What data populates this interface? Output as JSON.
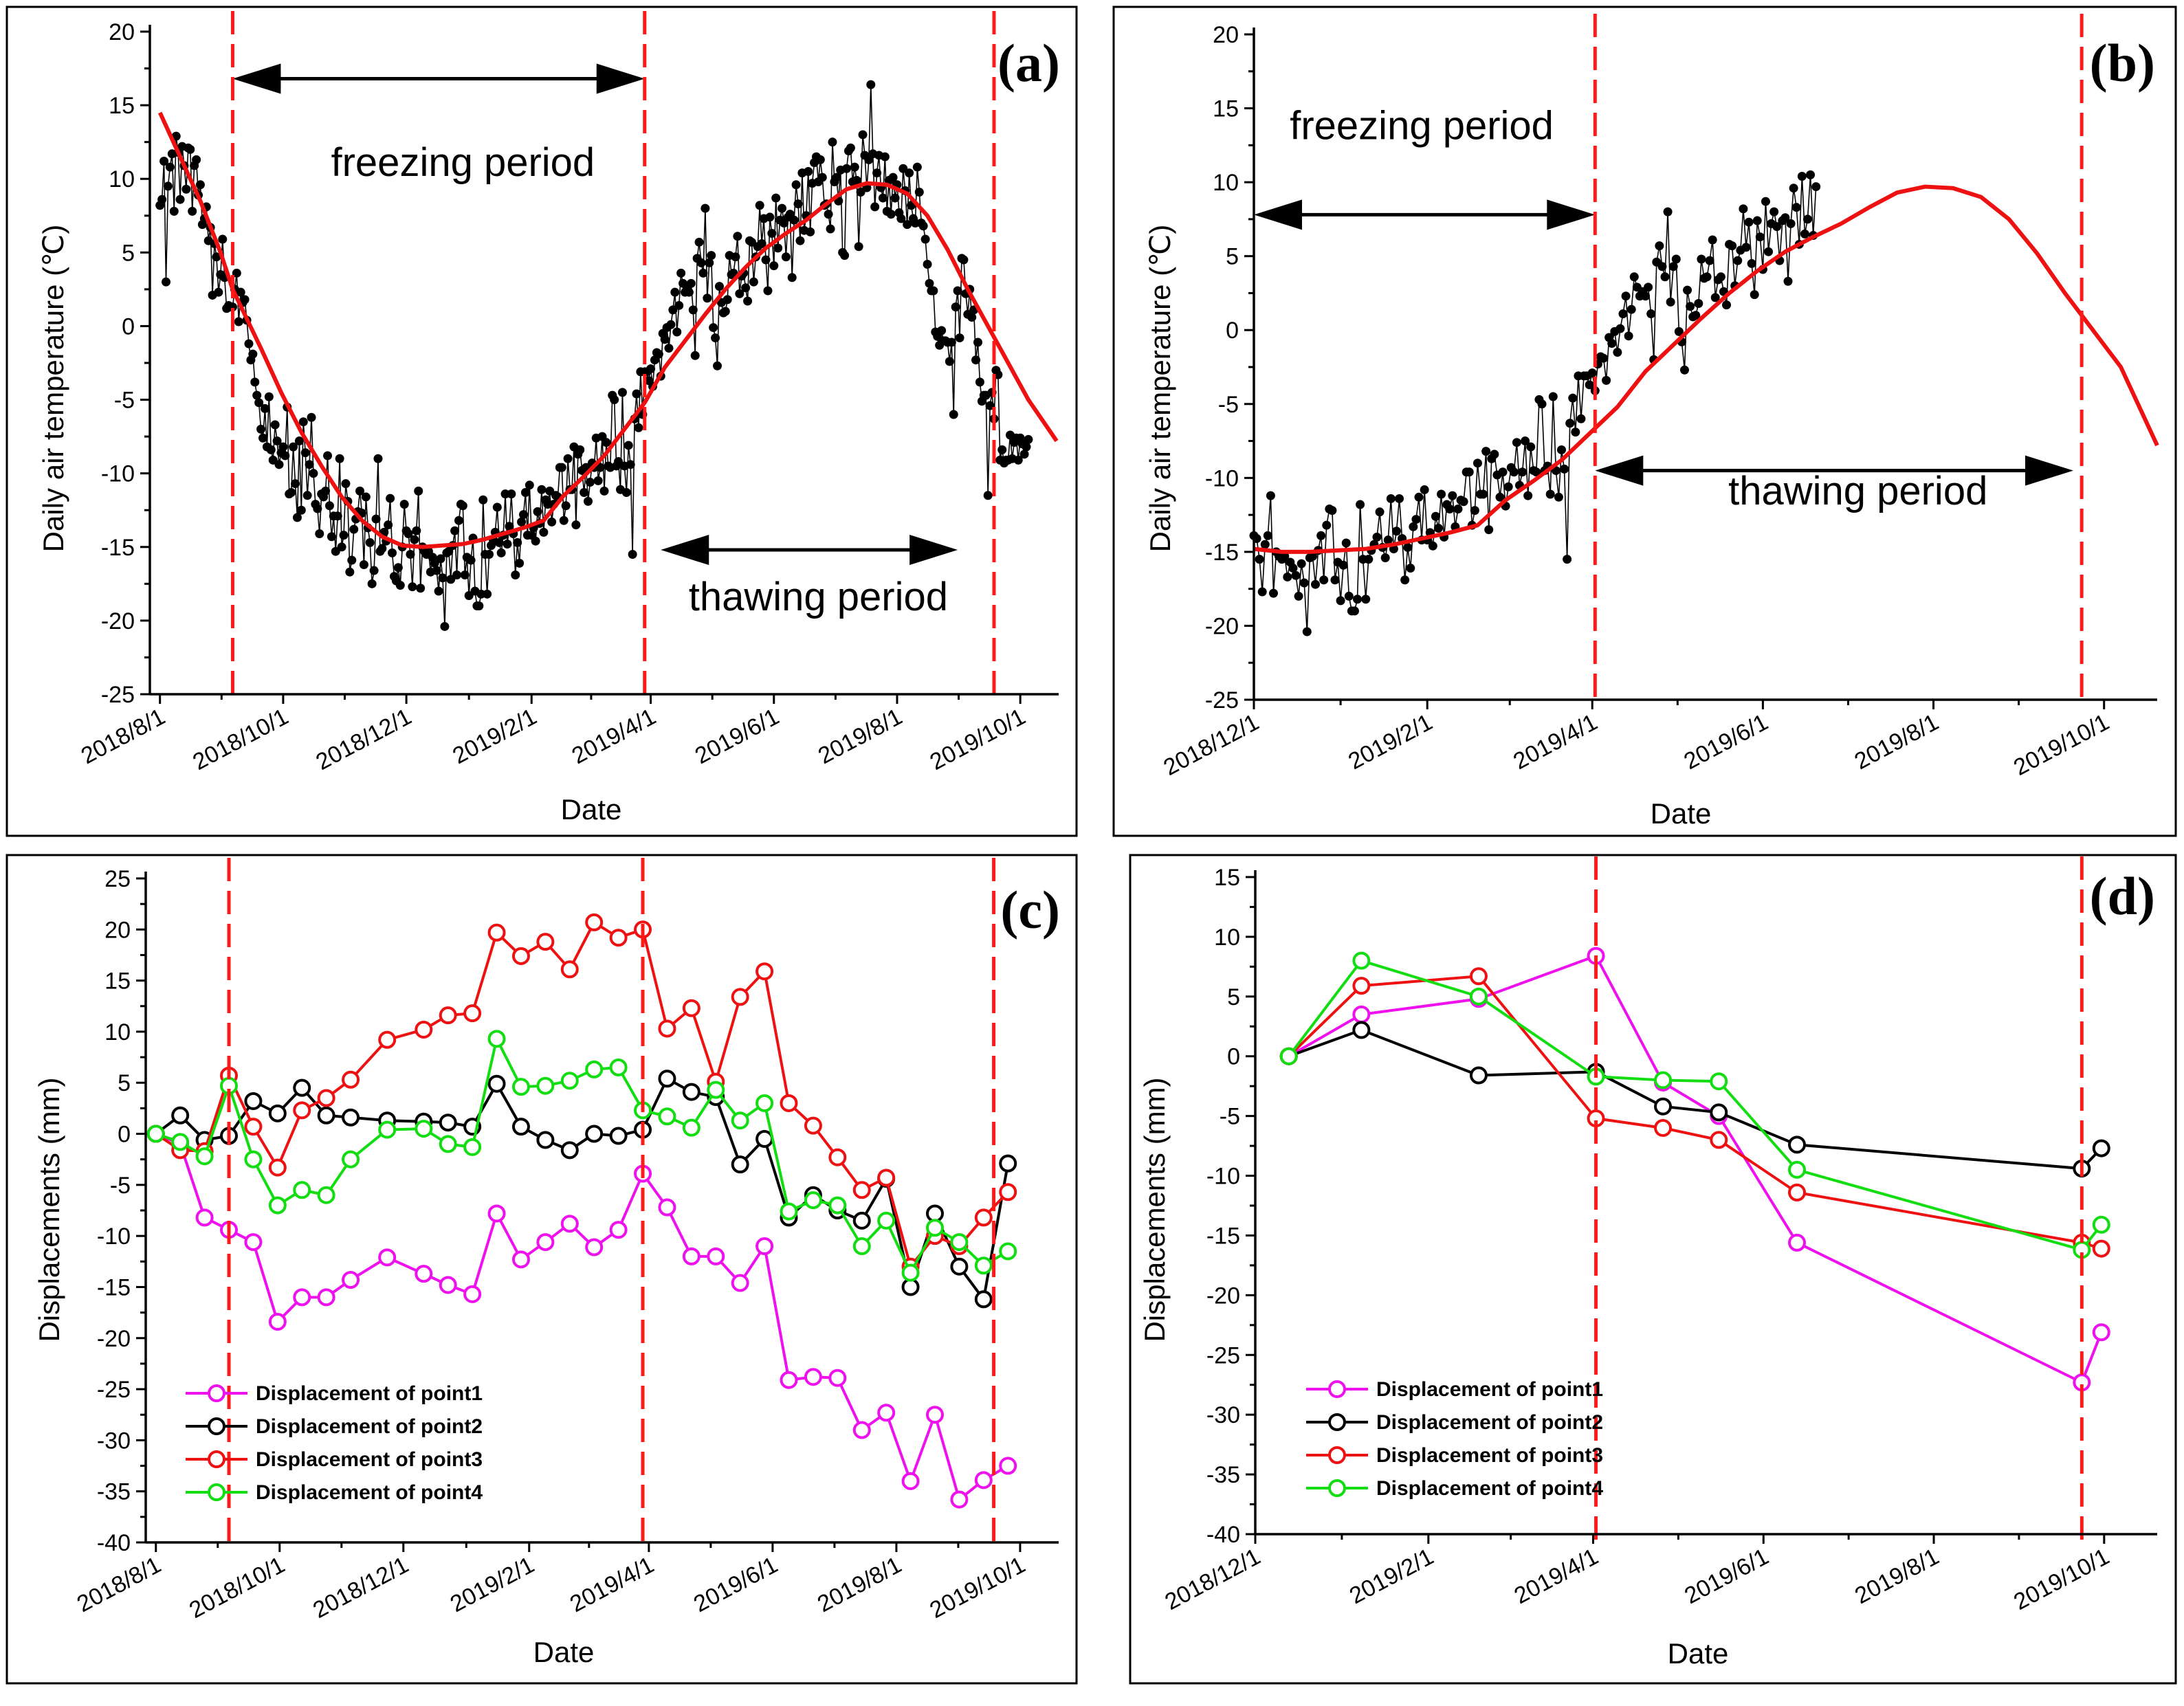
{
  "figure": {
    "background": "#ffffff",
    "colors": {
      "point1": "#ee11ee",
      "point2": "#000000",
      "point3": "#ee1111",
      "point4": "#11dd11",
      "trend": "#ee1111",
      "temperature": "#000000",
      "period_line": "#ff1a1a"
    }
  },
  "chart_data": [
    {
      "id": "a",
      "type": "scatter",
      "panel_label": "(a)",
      "title": "",
      "xlabel": "Date",
      "ylabel": "Daily air temperature (℃)",
      "xlim": [
        -5,
        445
      ],
      "ylim": [
        -25,
        20
      ],
      "yticks": [
        -25,
        -20,
        -15,
        -10,
        -5,
        0,
        5,
        10,
        15,
        20
      ],
      "xticks": [
        {
          "value": 0,
          "label": "2018/8/1"
        },
        {
          "value": 61,
          "label": "2018/10/1"
        },
        {
          "value": 122,
          "label": "2018/12/1"
        },
        {
          "value": 184,
          "label": "2019/2/1"
        },
        {
          "value": 243,
          "label": "2019/4/1"
        },
        {
          "value": 304,
          "label": "2019/6/1"
        },
        {
          "value": 365,
          "label": "2019/8/1"
        },
        {
          "value": 426,
          "label": "2019/10/1"
        }
      ],
      "period_lines": [
        36,
        240,
        413
      ],
      "annotations": [
        {
          "text": "freezing period",
          "x": 150,
          "y": 10.2
        },
        {
          "text": "thawing period",
          "x": 326,
          "y": -19.3
        }
      ],
      "arrows": [
        {
          "from": 36,
          "to": 240,
          "y": 16.8
        },
        {
          "from": 248,
          "to": 395,
          "y": -15.2
        }
      ],
      "series": [
        {
          "name": "Daily air temperature",
          "series_key": "temperature_daily"
        },
        {
          "name": "Trend",
          "x": [
            0,
            10,
            20,
            30,
            36,
            50,
            60,
            70,
            80,
            90,
            100,
            110,
            120,
            130,
            140,
            150,
            160,
            170,
            180,
            190,
            200,
            210,
            220,
            230,
            240,
            250,
            260,
            270,
            280,
            290,
            300,
            310,
            320,
            330,
            340,
            350,
            360,
            370,
            380,
            390,
            400,
            410,
            420,
            430,
            444
          ],
          "values": [
            14.5,
            11.5,
            8.5,
            5.0,
            2.5,
            -1.5,
            -4.5,
            -7.2,
            -9.5,
            -11.6,
            -13.2,
            -14.3,
            -14.9,
            -15.0,
            -14.9,
            -14.8,
            -14.5,
            -14.1,
            -13.7,
            -13.2,
            -11.5,
            -10.2,
            -8.8,
            -7.0,
            -5.2,
            -2.8,
            -1.0,
            0.8,
            2.5,
            4.0,
            5.3,
            6.3,
            7.2,
            8.3,
            9.3,
            9.7,
            9.6,
            9.0,
            7.5,
            5.2,
            2.5,
            0.0,
            -2.5,
            -5.0,
            -7.8
          ]
        }
      ]
    },
    {
      "id": "b",
      "type": "scatter",
      "panel_label": "(b)",
      "title": "",
      "xlabel": "Date",
      "ylabel": "Daily air temperature (℃)",
      "xlim": [
        0,
        323
      ],
      "ylim": [
        -25,
        20
      ],
      "yticks": [
        -25,
        -20,
        -15,
        -10,
        -5,
        0,
        5,
        10,
        15,
        20
      ],
      "xticks": [
        {
          "value": 0,
          "label": "2018/12/1"
        },
        {
          "value": 62,
          "label": "2019/2/1"
        },
        {
          "value": 121,
          "label": "2019/4/1"
        },
        {
          "value": 182,
          "label": "2019/6/1"
        },
        {
          "value": 243,
          "label": "2019/8/1"
        },
        {
          "value": 304,
          "label": "2019/10/1"
        }
      ],
      "period_lines": [
        122,
        296
      ],
      "annotations": [
        {
          "text": "freezing period",
          "x": 60,
          "y": 12.9
        },
        {
          "text": "thawing period",
          "x": 216,
          "y": -11.8
        }
      ],
      "arrows": [
        {
          "from": 0,
          "to": 122,
          "y": 7.8
        },
        {
          "from": 122,
          "to": 293,
          "y": -9.5
        }
      ],
      "series": [
        {
          "name": "Daily air temperature",
          "series_key": "temperature_daily"
        },
        {
          "name": "Trend",
          "x": [
            0,
            10,
            20,
            30,
            40,
            50,
            60,
            70,
            80,
            90,
            100,
            110,
            120,
            130,
            140,
            150,
            160,
            170,
            180,
            190,
            200,
            210,
            220,
            230,
            240,
            250,
            260,
            270,
            280,
            290,
            300,
            310,
            323
          ],
          "values": [
            -14.8,
            -15.0,
            -15.0,
            -14.9,
            -14.8,
            -14.5,
            -14.1,
            -13.7,
            -13.2,
            -11.5,
            -10.2,
            -8.8,
            -7.0,
            -5.2,
            -2.8,
            -1.0,
            0.8,
            2.5,
            4.0,
            5.3,
            6.3,
            7.2,
            8.3,
            9.3,
            9.7,
            9.6,
            9.0,
            7.5,
            5.2,
            2.5,
            0.0,
            -2.5,
            -7.8
          ]
        }
      ]
    },
    {
      "id": "c",
      "type": "line",
      "panel_label": "(c)",
      "title": "",
      "xlabel": "Date",
      "ylabel": "Displacements (mm)",
      "xlim": [
        -5,
        445
      ],
      "ylim": [
        -40,
        25
      ],
      "yticks": [
        -40,
        -35,
        -30,
        -25,
        -20,
        -15,
        -10,
        -5,
        0,
        5,
        10,
        15,
        20,
        25
      ],
      "xticks": [
        {
          "value": 0,
          "label": "2018/8/1"
        },
        {
          "value": 61,
          "label": "2018/10/1"
        },
        {
          "value": 122,
          "label": "2018/12/1"
        },
        {
          "value": 184,
          "label": "2019/2/1"
        },
        {
          "value": 243,
          "label": "2019/4/1"
        },
        {
          "value": 304,
          "label": "2019/6/1"
        },
        {
          "value": 365,
          "label": "2019/8/1"
        },
        {
          "value": 426,
          "label": "2019/10/1"
        }
      ],
      "period_lines": [
        36,
        240,
        413
      ],
      "legend": [
        "Displacement of point1",
        "Displacement of point2",
        "Displacement of point3",
        "Displacement of point4"
      ],
      "legend_position": "bottom-left",
      "x": [
        0,
        12,
        24,
        36,
        48,
        60,
        72,
        84,
        96,
        114,
        132,
        144,
        156,
        168,
        180,
        192,
        204,
        216,
        228,
        240,
        252,
        264,
        276,
        288,
        300,
        312,
        324,
        336,
        348,
        360,
        372,
        384,
        396,
        408,
        420,
        432,
        444
      ],
      "series": [
        {
          "name": "Displacement of point1",
          "color_key": "point1",
          "values": [
            0,
            -1.0,
            -8.2,
            -9.4,
            -10.6,
            -18.4,
            -16.0,
            -16.0,
            -14.3,
            -12.1,
            -13.7,
            -14.8,
            -15.7,
            -7.8,
            -12.3,
            -10.6,
            -8.8,
            -11.1,
            -9.4,
            -3.9,
            -7.2,
            -12.0,
            -12.0,
            -14.6,
            -11.0,
            -24.1,
            -23.8,
            -23.9,
            -29.0,
            -27.3,
            -34.0,
            -27.5,
            -35.8,
            -33.9,
            -32.5,
            null,
            null
          ]
        },
        {
          "name": "Displacement of point2",
          "color_key": "point2",
          "values": [
            0,
            1.8,
            -0.6,
            -0.2,
            3.2,
            2.0,
            4.5,
            1.8,
            1.6,
            1.3,
            1.2,
            1.1,
            0.7,
            4.9,
            0.7,
            -0.6,
            -1.6,
            0.0,
            -0.2,
            0.4,
            5.4,
            4.1,
            3.6,
            -3.0,
            -0.5,
            -8.2,
            -6.0,
            -7.5,
            -8.5,
            -4.4,
            -15.0,
            -7.8,
            -13.0,
            -16.2,
            -2.9,
            null,
            null
          ]
        },
        {
          "name": "Displacement of point3",
          "color_key": "point3",
          "values": [
            0,
            -1.6,
            -1.7,
            5.7,
            0.7,
            -3.3,
            2.3,
            3.5,
            5.3,
            9.2,
            10.2,
            11.6,
            11.8,
            19.7,
            17.4,
            18.8,
            16.1,
            20.7,
            19.2,
            20.0,
            10.3,
            12.3,
            5.1,
            13.4,
            15.9,
            3.0,
            0.8,
            -2.3,
            -5.5,
            -4.3,
            -13.0,
            -10.0,
            -11.0,
            -8.2,
            -5.7,
            null,
            null
          ]
        },
        {
          "name": "Displacement of point4",
          "color_key": "point4",
          "values": [
            0,
            -0.8,
            -2.2,
            4.7,
            -2.5,
            -7.0,
            -5.5,
            -6.0,
            -2.5,
            0.4,
            0.5,
            -1.0,
            -1.3,
            9.3,
            4.6,
            4.7,
            5.2,
            6.3,
            6.5,
            2.3,
            1.7,
            0.6,
            4.3,
            1.3,
            3.0,
            -7.6,
            -6.5,
            -7.0,
            -11.0,
            -8.5,
            -13.6,
            -9.2,
            -10.6,
            -12.9,
            -11.5,
            null,
            null
          ]
        }
      ]
    },
    {
      "id": "d",
      "type": "line",
      "panel_label": "(d)",
      "title": "",
      "xlabel": "Date",
      "ylabel": "Displacements (mm)",
      "xlim": [
        0,
        323
      ],
      "ylim": [
        -40,
        15
      ],
      "yticks": [
        -40,
        -35,
        -30,
        -25,
        -20,
        -15,
        -10,
        -5,
        0,
        5,
        10,
        15
      ],
      "xticks": [
        {
          "value": 0,
          "label": "2018/12/1"
        },
        {
          "value": 62,
          "label": "2019/2/1"
        },
        {
          "value": 121,
          "label": "2019/4/1"
        },
        {
          "value": 182,
          "label": "2019/6/1"
        },
        {
          "value": 243,
          "label": "2019/8/1"
        },
        {
          "value": 304,
          "label": "2019/10/1"
        }
      ],
      "period_lines": [
        122,
        296
      ],
      "legend": [
        "Displacement of point1",
        "Displacement of point2",
        "Displacement of point3",
        "Displacement of point4"
      ],
      "legend_position": "bottom-left",
      "x": [
        12,
        38,
        80,
        122,
        146,
        166,
        194,
        296,
        303
      ],
      "series": [
        {
          "name": "Displacement of point1",
          "color_key": "point1",
          "values": [
            0,
            3.5,
            4.8,
            8.4,
            -2.2,
            -5.0,
            -15.6,
            -27.3,
            -23.1
          ]
        },
        {
          "name": "Displacement of point2",
          "color_key": "point2",
          "values": [
            0,
            2.2,
            -1.6,
            -1.3,
            -4.2,
            -4.7,
            -7.4,
            -9.4,
            -7.7
          ]
        },
        {
          "name": "Displacement of point3",
          "color_key": "point3",
          "values": [
            0,
            5.9,
            6.7,
            -5.2,
            -6.0,
            -7.0,
            -11.4,
            -15.6,
            -16.1
          ]
        },
        {
          "name": "Displacement of point4",
          "color_key": "point4",
          "values": [
            0,
            8.0,
            5.0,
            -1.7,
            -2.0,
            -2.1,
            -9.5,
            -16.2,
            -14.1
          ]
        }
      ]
    }
  ],
  "temperature_daily": {
    "note": "daily air temperature, day 0 = 2018/8/1",
    "start_day": 0,
    "values": [
      8.2,
      8.6,
      11.2,
      3.0,
      9.5,
      10.8,
      11.7,
      7.8,
      12.9,
      11.8,
      8.6,
      12.2,
      10.9,
      9.3,
      12.1,
      12.0,
      7.8,
      10.9,
      11.3,
      8.9,
      9.6,
      6.9,
      7.3,
      8.1,
      5.8,
      6.7,
      2.1,
      5.6,
      4.7,
      2.3,
      3.5,
      5.9,
      3.3,
      1.2,
      1.4,
      1.3,
      1.3,
      2.5,
      3.6,
      0.3,
      2.3,
      1.6,
      1.8,
      0.4,
      -1.2,
      -2.3,
      -1.9,
      -3.8,
      -4.7,
      -5.2,
      -7.0,
      -7.6,
      -5.6,
      -8.2,
      -4.8,
      -8.4,
      -9.1,
      -6.7,
      -7.8,
      -9.4,
      -8.6,
      -8.2,
      -8.8,
      -5.5,
      -11.4,
      -11.3,
      -8.2,
      -10.7,
      -13.0,
      -7.8,
      -12.5,
      -6.5,
      -8.6,
      -11.5,
      -9.4,
      -6.2,
      -10.0,
      -12.1,
      -12.4,
      -14.1,
      -11.4,
      -11.6,
      -11.2,
      -8.8,
      -12.2,
      -14.3,
      -12.9,
      -15.3,
      -12.9,
      -9.0,
      -15.0,
      -14.2,
      -10.7,
      -11.9,
      -16.7,
      -15.9,
      -13.8,
      -13.1,
      -12.6,
      -11.2,
      -12.7,
      -16.2,
      -11.6,
      -13.7,
      -14.7,
      -17.5,
      -16.6,
      -13.1,
      -9.0,
      -15.3,
      -15.1,
      -14.0,
      -14.6,
      -13.5,
      -11.7,
      -15.4,
      -17.0,
      -17.3,
      -16.4,
      -17.6,
      -15.0,
      -12.1,
      -13.9,
      -14.1,
      -15.5,
      -17.7,
      -14.5,
      -13.9,
      -11.2,
      -17.8,
      -15.0,
      -15.3,
      -15.5,
      -15.3,
      -16.7,
      -15.7,
      -16.1,
      -16.6,
      -18.0,
      -15.8,
      -17.1,
      -20.4,
      -15.4,
      -15.3,
      -17.2,
      -14.9,
      -13.9,
      -16.9,
      -13.2,
      -12.1,
      -12.2,
      -16.9,
      -15.7,
      -18.3,
      -15.9,
      -14.4,
      -18.0,
      -19.0,
      -19.0,
      -18.2,
      -11.8,
      -15.5,
      -18.2,
      -15.5,
      -14.9,
      -14.5,
      -14.0,
      -12.3,
      -14.7,
      -15.4,
      -14.2,
      -11.4,
      -14.8,
      -13.6,
      -11.4,
      -14.1,
      -16.9,
      -14.7,
      -16.1,
      -13.3,
      -12.8,
      -11.3,
      -14.2,
      -10.8,
      -14.2,
      -13.7,
      -14.6,
      -12.6,
      -13.4,
      -11.1,
      -14.0,
      -11.8,
      -12.1,
      -11.2,
      -13.3,
      -12.1,
      -11.5,
      -11.6,
      -9.6,
      -9.6,
      -13.2,
      -12.2,
      -9.0,
      -11.1,
      -11.1,
      -8.2,
      -13.5,
      -8.7,
      -8.4,
      -9.8,
      -11.3,
      -9.6,
      -11.9,
      -10.6,
      -9.3,
      -9.6,
      -7.6,
      -10.5,
      -9.6,
      -7.5,
      -11.2,
      -7.9,
      -9.5,
      -9.6,
      -4.7,
      -5.0,
      -9.5,
      -9.2,
      -11.1,
      -4.5,
      -9.5,
      -11.3,
      -8.1,
      -9.4,
      -15.5,
      -6.3,
      -4.6,
      -6.9,
      -3.1,
      -6.0,
      -3.1,
      -3.1,
      -3.7,
      -2.9,
      -4.1,
      -2.3,
      -1.8,
      -1.9,
      -3.4,
      -0.5,
      -0.9,
      -0.1,
      -1.5,
      0.1,
      1.1,
      2.3,
      -0.4,
      1.4,
      3.6,
      2.9,
      2.3,
      2.6,
      2.3,
      2.9,
      1.1,
      -2.0,
      4.6,
      5.7,
      4.3,
      3.6,
      8.0,
      1.9,
      4.3,
      4.8,
      -0.1,
      -0.8,
      -2.7,
      2.7,
      1.6,
      0.9,
      1.0,
      1.8,
      4.8,
      3.5,
      3.6,
      4.7,
      6.1,
      2.2,
      3.4,
      3.6,
      2.6,
      1.7,
      5.8,
      5.7,
      3.0,
      4.7,
      5.4,
      8.2,
      5.6,
      7.3,
      4.5,
      2.4,
      7.4,
      6.3,
      4.1,
      8.7,
      5.3,
      7.2,
      8.0,
      7.0,
      4.7,
      7.4,
      7.6,
      3.3,
      7.2,
      9.6,
      8.3,
      5.8,
      10.4,
      6.5,
      7.5,
      10.5,
      6.4,
      9.7,
      11.1,
      11.5,
      9.8,
      11.3,
      10.1,
      8.2,
      8.3,
      7.6,
      6.6,
      12.5,
      9.8,
      10.1,
      8.5,
      10.6,
      5.0,
      4.8,
      10.7,
      11.9,
      12.1,
      9.8,
      10.8,
      9.9,
      5.4,
      9.1,
      13.0,
      11.6,
      9.4,
      11.3,
      16.4,
      11.7,
      8.1,
      10.4,
      11.6,
      9.4,
      8.7,
      11.5,
      7.8,
      9.9,
      7.6,
      10.1,
      8.7,
      9.6,
      7.7,
      7.3,
      10.7,
      9.2,
      6.9,
      10.4,
      8.2,
      7.3,
      7.0,
      10.8,
      9.1,
      7.0,
      6.8,
      5.9,
      4.2,
      2.9,
      2.4,
      2.4,
      -0.4,
      -0.7,
      -1.3,
      -0.3,
      -1.0,
      -1.0,
      -1.1,
      -2.4,
      -1.1,
      -6.0,
      1.3,
      2.4,
      -0.8,
      4.6,
      4.5,
      2.2,
      0.8,
      2.5,
      0.6,
      1.1,
      -2.3,
      -1.1,
      -3.8,
      -5.1,
      -4.7,
      -4.7,
      -11.5,
      -5.4,
      -4.5,
      -6.3,
      -3.0,
      -3.3,
      -9.1,
      -8.4,
      -9.3,
      -9.1,
      -9.1,
      -7.4,
      -9.0,
      -7.9,
      -7.6,
      -9.1,
      -7.6,
      -8.0,
      -8.7,
      -8.2,
      -7.7
    ]
  }
}
